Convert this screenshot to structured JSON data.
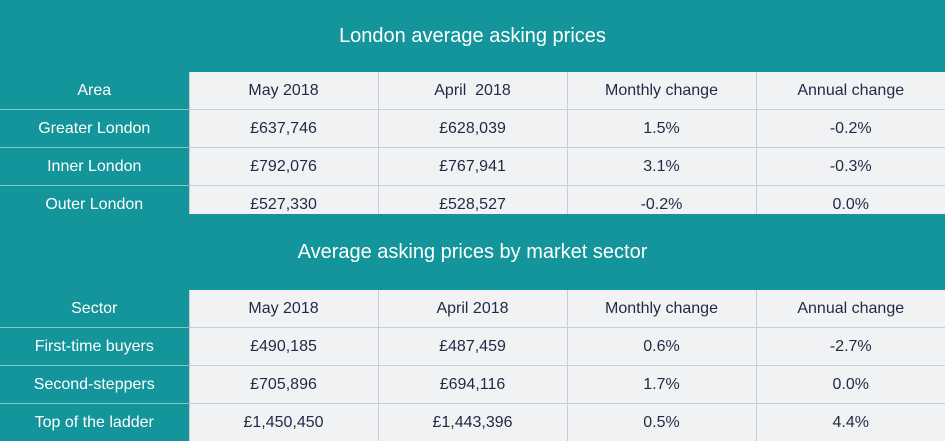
{
  "section1": {
    "title": "London average asking prices",
    "headers": [
      "Area",
      "May 2018",
      "April  2018",
      "Monthly change",
      "Annual change"
    ],
    "rows": [
      [
        "Greater London",
        "£637,746",
        "£628,039",
        "1.5%",
        "-0.2%"
      ],
      [
        "Inner London",
        "£792,076",
        "£767,941",
        "3.1%",
        "-0.3%"
      ],
      [
        "Outer London",
        "£527,330",
        "£528,527",
        "-0.2%",
        "0.0%"
      ]
    ]
  },
  "section2": {
    "title": "Average asking prices by market sector",
    "headers": [
      "Sector",
      "May 2018",
      "April 2018",
      "Monthly change",
      "Annual change"
    ],
    "rows": [
      [
        "First-time buyers",
        "£490,185",
        "£487,459",
        "0.6%",
        "-2.7%"
      ],
      [
        "Second-steppers",
        "£705,896",
        "£694,116",
        "1.7%",
        "0.0%"
      ],
      [
        "Top of the ladder",
        "£1,450,450",
        "£1,443,396",
        "0.5%",
        "4.4%"
      ]
    ]
  },
  "colors": {
    "teal": "#14959b",
    "cell_bg": "#f1f2f4",
    "text": "#1f2a44"
  }
}
